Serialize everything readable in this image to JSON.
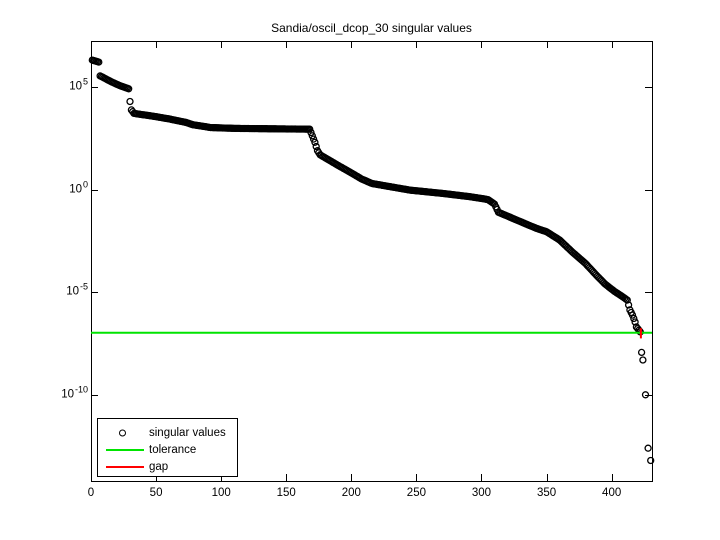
{
  "figure": {
    "title": "Sandia/oscil_dcop_30 singular values",
    "background": "#ffffff"
  },
  "legend": {
    "items": [
      {
        "label": "singular values",
        "marker": "open-circle",
        "color": "#000000"
      },
      {
        "label": "tolerance",
        "marker": "line",
        "color": "#00E400"
      },
      {
        "label": "gap",
        "marker": "line",
        "color": "#FF0000"
      }
    ]
  },
  "chart_data": {
    "type": "scatter",
    "title": "Sandia/oscil_dcop_30 singular values",
    "xlabel": "",
    "ylabel": "",
    "y_scale": "log10",
    "grid": false,
    "x_ticks": [
      0,
      50,
      100,
      150,
      200,
      250,
      300,
      350,
      400
    ],
    "y_tick_exponents": [
      5,
      0,
      -5,
      -10
    ],
    "xlim": [
      0,
      431
    ],
    "ylim_log10": [
      -14.2,
      7.25
    ],
    "legend_position": "bottom-left",
    "n_singular_values": 430,
    "marker": {
      "shape": "open-circle",
      "color": "#000000"
    },
    "singular_values_log10_anchors": [
      [
        1,
        6.32
      ],
      [
        6,
        6.22
      ],
      [
        7,
        5.55
      ],
      [
        16,
        5.25
      ],
      [
        22,
        5.08
      ],
      [
        29,
        4.92
      ],
      [
        30,
        4.3
      ],
      [
        31,
        3.89
      ],
      [
        33,
        3.72
      ],
      [
        48,
        3.58
      ],
      [
        60,
        3.45
      ],
      [
        73,
        3.28
      ],
      [
        78,
        3.17
      ],
      [
        92,
        3.03
      ],
      [
        110,
        2.99
      ],
      [
        168,
        2.95
      ],
      [
        172,
        2.31
      ],
      [
        174,
        1.9
      ],
      [
        176,
        1.7
      ],
      [
        190,
        1.18
      ],
      [
        200,
        0.82
      ],
      [
        208,
        0.52
      ],
      [
        216,
        0.3
      ],
      [
        245,
        -0.02
      ],
      [
        270,
        -0.18
      ],
      [
        291,
        -0.34
      ],
      [
        305,
        -0.48
      ],
      [
        310,
        -0.7
      ],
      [
        313,
        -1.1
      ],
      [
        342,
        -1.88
      ],
      [
        350,
        -2.05
      ],
      [
        360,
        -2.45
      ],
      [
        370,
        -3.05
      ],
      [
        380,
        -3.6
      ],
      [
        388,
        -4.15
      ],
      [
        395,
        -4.6
      ],
      [
        402,
        -4.95
      ],
      [
        408,
        -5.2
      ],
      [
        412,
        -5.38
      ],
      [
        413,
        -5.62
      ],
      [
        414,
        -5.86
      ],
      [
        416,
        -6.11
      ],
      [
        418,
        -6.45
      ],
      [
        419,
        -6.69
      ],
      [
        421,
        -6.85
      ]
    ],
    "below_tolerance_points_log10": [
      [
        422,
        -6.93
      ],
      [
        423,
        -7.93
      ],
      [
        424,
        -8.3
      ],
      [
        426,
        -10.0
      ],
      [
        428,
        -12.6
      ],
      [
        430,
        -13.2
      ]
    ],
    "tolerance": {
      "value_log10": -6.97,
      "color": "#00E400"
    },
    "gap": {
      "x_index": 422.5,
      "log10_from": -6.75,
      "log10_to": -7.25,
      "color": "#FF0000"
    }
  }
}
